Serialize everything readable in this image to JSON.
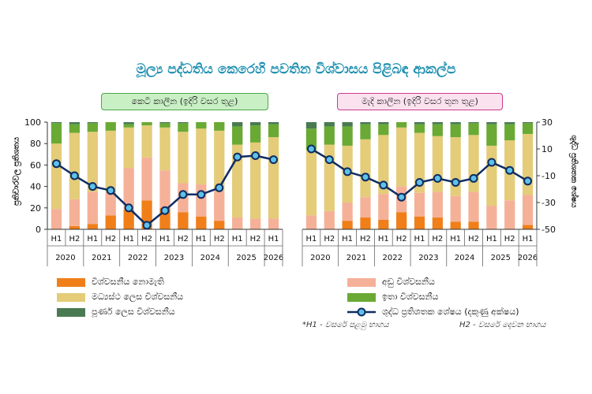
{
  "title": "මූල්‍ය පද්ධතිය කෙරෙහි පවතින විශ්වාසය පිළිබඳ ආකල්ප",
  "panel_labels": {
    "short_term": "කෙටි කාලීන (ඉදිරි වසර තුළ)",
    "medium_term": "මැදි කාලීන (ඉදිරි වසර තුන තුළ)"
  },
  "legend": {
    "no_confidence": "විශ්වසනීය නොමැති",
    "low_confidence": "අඩු විශ්වසනීය",
    "moderate_confidence": "මධ්‍යස්ථ ලෙස විශ්වසනීය",
    "high_confidence": "ඉතා විශ්වසනීය",
    "complete_confidence": "පූර්ණ ලෙස විශ්වසනීය",
    "net_balance": "ශුද්ධ ප්‍රතිශතක ශේෂය (දකුණු අක්ෂය)"
  },
  "footnotes": {
    "h1": "*H1 - වසරේ පළමු භාගය",
    "h2": "H2 - වසරේ දෙවන භාගය"
  },
  "chart_data": {
    "type": "bar",
    "stacked": true,
    "y_left": {
      "label": "ප්‍රතිචාරවල ප්‍රතිශතය",
      "range": [
        0,
        100
      ],
      "ticks": [
        0,
        20,
        40,
        60,
        80,
        100
      ]
    },
    "y_right": {
      "label": "ශුද්ධ ප්‍රතිශතක ශේෂය",
      "range": [
        -50,
        30
      ],
      "ticks": [
        -50,
        -30,
        -10,
        10,
        30
      ]
    },
    "colors": {
      "no_confidence": "#f07f1a",
      "low_confidence": "#f5b198",
      "moderate_confidence": "#e4cc79",
      "high_confidence": "#6aaa34",
      "complete_confidence": "#4a7a52",
      "line": "#0f2d62",
      "marker": "#5ec1e8"
    },
    "series_keys": [
      "no_confidence",
      "low_confidence",
      "moderate_confidence",
      "high_confidence",
      "complete_confidence"
    ],
    "panels": [
      {
        "name": "short_term",
        "categories": [
          "H1",
          "H2",
          "H1",
          "H2",
          "H1",
          "H2",
          "H1",
          "H2",
          "H1",
          "H2",
          "H1",
          "H2",
          "H1"
        ],
        "year_groups": [
          {
            "label": "2020",
            "span": 2
          },
          {
            "label": "2021",
            "span": 2
          },
          {
            "label": "2022",
            "span": 2
          },
          {
            "label": "2023",
            "span": 2
          },
          {
            "label": "2024",
            "span": 2
          },
          {
            "label": "2025",
            "span": 2
          },
          {
            "label": "2026",
            "span": 1
          }
        ],
        "stacks": [
          [
            0,
            19,
            61,
            19,
            1
          ],
          [
            3,
            25,
            62,
            8,
            2
          ],
          [
            5,
            30,
            56,
            8,
            1
          ],
          [
            13,
            22,
            57,
            8,
            0
          ],
          [
            18,
            39,
            38,
            3,
            2
          ],
          [
            27,
            40,
            30,
            3,
            0
          ],
          [
            20,
            35,
            40,
            4,
            1
          ],
          [
            16,
            27,
            48,
            8,
            1
          ],
          [
            12,
            30,
            52,
            6,
            0
          ],
          [
            8,
            28,
            56,
            8,
            0
          ],
          [
            0,
            11,
            68,
            17,
            4
          ],
          [
            0,
            10,
            71,
            16,
            3
          ],
          [
            0,
            10,
            76,
            12,
            2
          ]
        ],
        "net_balance": [
          -1,
          -10,
          -18,
          -21,
          -34,
          -47,
          -36,
          -24,
          -24,
          -19,
          4,
          5,
          2
        ]
      },
      {
        "name": "medium_term",
        "categories": [
          "H1",
          "H2",
          "H1",
          "H2",
          "H1",
          "H2",
          "H1",
          "H2",
          "H1",
          "H2",
          "H1",
          "H2",
          "H1"
        ],
        "year_groups": [
          {
            "label": "2020",
            "span": 2
          },
          {
            "label": "2021",
            "span": 2
          },
          {
            "label": "2022",
            "span": 2
          },
          {
            "label": "2023",
            "span": 2
          },
          {
            "label": "2024",
            "span": 2
          },
          {
            "label": "2025",
            "span": 2
          },
          {
            "label": "2026",
            "span": 1
          }
        ],
        "stacks": [
          [
            0,
            13,
            61,
            20,
            6
          ],
          [
            0,
            17,
            62,
            17,
            4
          ],
          [
            8,
            17,
            53,
            18,
            4
          ],
          [
            11,
            19,
            54,
            14,
            2
          ],
          [
            9,
            24,
            55,
            10,
            2
          ],
          [
            16,
            24,
            55,
            5,
            0
          ],
          [
            12,
            22,
            56,
            8,
            2
          ],
          [
            11,
            24,
            52,
            11,
            2
          ],
          [
            7,
            24,
            55,
            12,
            2
          ],
          [
            7,
            28,
            53,
            11,
            1
          ],
          [
            0,
            22,
            56,
            20,
            2
          ],
          [
            0,
            27,
            56,
            15,
            2
          ],
          [
            4,
            28,
            57,
            10,
            1
          ]
        ],
        "net_balance": [
          10,
          2,
          -7,
          -11,
          -17,
          -26,
          -15,
          -12,
          -15,
          -12,
          0,
          -6,
          -14
        ]
      }
    ]
  }
}
